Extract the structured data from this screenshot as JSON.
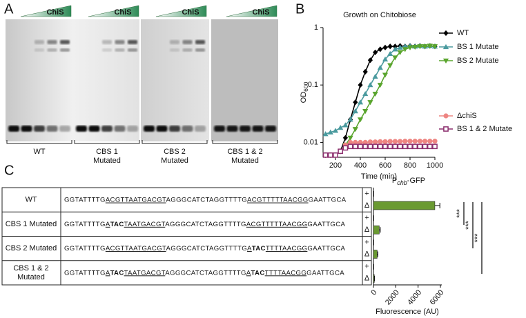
{
  "panel_labels": [
    "A",
    "B",
    "C"
  ],
  "gel": {
    "reagent": "ChiS",
    "groups": [
      [
        "WT"
      ],
      [
        "CBS 1",
        "Mutated"
      ],
      [
        "CBS 2",
        "Mutated"
      ],
      [
        "CBS 1 & 2",
        "Mutated"
      ]
    ]
  },
  "table": {
    "rows": [
      {
        "label": [
          "WT"
        ],
        "sequence": [
          {
            "text": "GGTATTTTG"
          },
          {
            "text": "ACGTTAATGACGT",
            "underline": true
          },
          {
            "text": "AGGGCATCTAGGTTTTG"
          },
          {
            "text": "ACGTTTTTAACGG",
            "underline": true
          },
          {
            "text": "GAATTGCA"
          }
        ]
      },
      {
        "label": [
          "CBS 1 Mutated"
        ],
        "sequence": [
          {
            "text": "GGTATTTTG"
          },
          {
            "text": "A",
            "underline": true
          },
          {
            "text": "TAC",
            "bold": true
          },
          {
            "text": "TAATGACGT",
            "underline": true
          },
          {
            "text": "AGGGCATCTAGGTTTTG"
          },
          {
            "text": "ACGTTTTTAACGG",
            "underline": true
          },
          {
            "text": "GAATTGCA"
          }
        ]
      },
      {
        "label": [
          "CBS 2 Mutated"
        ],
        "sequence": [
          {
            "text": "GGTATTTTG"
          },
          {
            "text": "ACGTTAATGACGT",
            "underline": true
          },
          {
            "text": "AGGGCATCTAGGTTTTG"
          },
          {
            "text": "A",
            "underline": true
          },
          {
            "text": "TAC",
            "bold": true
          },
          {
            "text": "TTTTAACGG",
            "underline": true
          },
          {
            "text": "GAATTGCA"
          }
        ]
      },
      {
        "label": [
          "CBS 1 & 2",
          "Mutated"
        ],
        "sequence": [
          {
            "text": "GGTATTTTG"
          },
          {
            "text": "A",
            "underline": true
          },
          {
            "text": "TAC",
            "bold": true
          },
          {
            "text": "TAATGACGT",
            "underline": true
          },
          {
            "text": "AGGGCATCTAGGTTTTG"
          },
          {
            "text": "A",
            "underline": true
          },
          {
            "text": "TAC",
            "bold": true
          },
          {
            "text": "TTTTAACGG",
            "underline": true
          },
          {
            "text": "GAATTGCA"
          }
        ]
      }
    ]
  },
  "chart_data": [
    {
      "type": "line",
      "title": "Growth on Chitobiose",
      "xlabel": "Time (min)",
      "ylabel": "OD",
      "ylabel_sub": "600",
      "log_y": true,
      "xlim": [
        100,
        1000
      ],
      "xticks": [
        200,
        400,
        600,
        800,
        1000
      ],
      "ylim": [
        0.0055,
        1
      ],
      "yticks": [
        0.01,
        0.1,
        1
      ],
      "x": [
        120,
        160,
        200,
        240,
        280,
        320,
        360,
        400,
        440,
        480,
        520,
        560,
        600,
        640,
        680,
        720,
        760,
        800,
        840,
        880,
        920,
        960,
        1000
      ],
      "series": [
        {
          "name": "WT",
          "color": "#000000",
          "marker": "diamond",
          "values": [
            0.006,
            0.006,
            0.006,
            0.007,
            0.012,
            0.025,
            0.05,
            0.1,
            0.17,
            0.27,
            0.37,
            0.42,
            0.45,
            0.47,
            0.47,
            0.48,
            0.47,
            0.48,
            0.47,
            0.48,
            0.47,
            0.48,
            0.47
          ]
        },
        {
          "name": "BS 1 Mutate",
          "color": "#4a9a9e",
          "marker": "triangle",
          "values": [
            0.014,
            0.015,
            0.016,
            0.018,
            0.02,
            0.025,
            0.035,
            0.05,
            0.07,
            0.1,
            0.14,
            0.2,
            0.28,
            0.35,
            0.42,
            0.45,
            0.47,
            0.48,
            0.47,
            0.48,
            0.47,
            0.48,
            0.47
          ]
        },
        {
          "name": "BS 2 Mutate",
          "color": "#5aa52e",
          "marker": "triangle-down",
          "values": [
            0.006,
            0.006,
            0.006,
            0.007,
            0.009,
            0.012,
            0.017,
            0.025,
            0.035,
            0.05,
            0.07,
            0.1,
            0.15,
            0.22,
            0.3,
            0.37,
            0.42,
            0.45,
            0.46,
            0.47,
            0.47,
            0.48,
            0.47
          ]
        },
        {
          "name": "ΔchiS",
          "color": "#ee8582",
          "marker": "circle",
          "values": [
            0.006,
            0.006,
            0.006,
            0.007,
            0.009,
            0.01,
            0.01,
            0.01,
            0.01,
            0.0102,
            0.0102,
            0.0103,
            0.0103,
            0.0104,
            0.0104,
            0.0104,
            0.0105,
            0.0105,
            0.0105,
            0.0105,
            0.0105,
            0.0105,
            0.0105
          ]
        },
        {
          "name": "BS 1 & 2 Mutate",
          "color": "#8c2f6e",
          "marker": "square-open",
          "values": [
            0.006,
            0.006,
            0.006,
            0.007,
            0.008,
            0.0085,
            0.0085,
            0.0085,
            0.0085,
            0.0085,
            0.0085,
            0.0085,
            0.0085,
            0.0085,
            0.0085,
            0.0085,
            0.0085,
            0.0085,
            0.0085,
            0.0085,
            0.0085,
            0.0085,
            0.0085
          ]
        }
      ]
    },
    {
      "type": "barh",
      "title": "P",
      "title_sub": "chb",
      "title_tail": "-GFP",
      "xlabel": "Fluorescence (AU)",
      "categories": [
        "+",
        "Δ",
        "+",
        "Δ",
        "+",
        "Δ",
        "+",
        "Δ"
      ],
      "values": [
        20,
        5500,
        20,
        520,
        20,
        330,
        20,
        70
      ],
      "errors": [
        5,
        450,
        5,
        90,
        5,
        60,
        5,
        20
      ],
      "xlim": [
        0,
        6000
      ],
      "xticks": [
        0,
        2000,
        4000,
        6000
      ],
      "color": "#6a9a32",
      "annotations": [
        "***",
        "***",
        "***"
      ]
    }
  ]
}
